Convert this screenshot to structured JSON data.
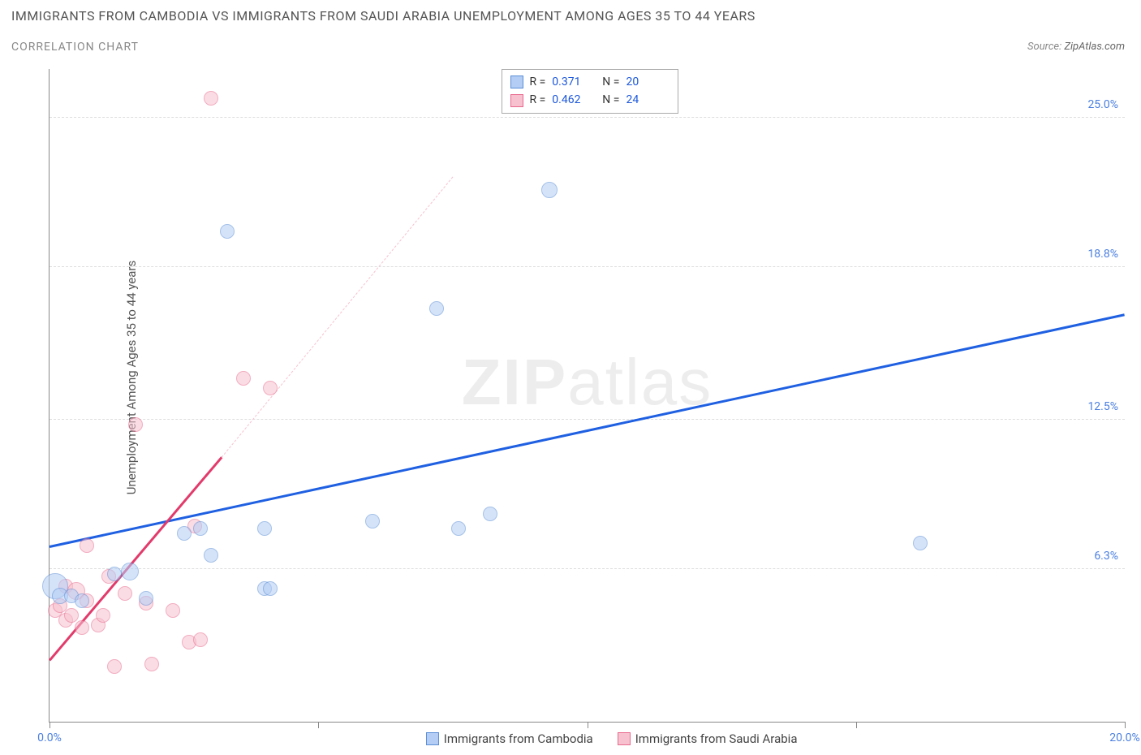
{
  "title": "IMMIGRANTS FROM CAMBODIA VS IMMIGRANTS FROM SAUDI ARABIA UNEMPLOYMENT AMONG AGES 35 TO 44 YEARS",
  "subtitle": "CORRELATION CHART",
  "source_prefix": "Source: ",
  "source_name": "ZipAtlas.com",
  "yaxis_label": "Unemployment Among Ages 35 to 44 years",
  "watermark_a": "ZIP",
  "watermark_b": "atlas",
  "chart": {
    "type": "scatter",
    "xlim": [
      0,
      20
    ],
    "ylim": [
      0,
      27
    ],
    "xticks": [
      0,
      5,
      10,
      15,
      20
    ],
    "xtick_labels": [
      "0.0%",
      "",
      "",
      "",
      "20.0%"
    ],
    "yticks": [
      6.3,
      12.5,
      18.8,
      25.0
    ],
    "ytick_labels": [
      "6.3%",
      "12.5%",
      "18.8%",
      "25.0%"
    ],
    "grid_color": "#dddddd",
    "background": "#ffffff",
    "series": [
      {
        "key": "cambodia",
        "label": "Immigrants from Cambodia",
        "fill": "#b3cdf5",
        "stroke": "#5b8fd6",
        "fill_opacity": 0.55,
        "r_default": 9,
        "R": "0.371",
        "N": "20",
        "trend": {
          "x1": 0,
          "y1": 7.2,
          "x2": 20,
          "y2": 16.8,
          "color": "#1f60e2",
          "dash_after_x": 20
        },
        "points": [
          {
            "x": 0.1,
            "y": 5.6,
            "r": 16
          },
          {
            "x": 0.2,
            "y": 5.2,
            "r": 10
          },
          {
            "x": 0.4,
            "y": 5.2,
            "r": 9
          },
          {
            "x": 0.6,
            "y": 5.0,
            "r": 9
          },
          {
            "x": 1.2,
            "y": 6.1,
            "r": 9
          },
          {
            "x": 1.5,
            "y": 6.2,
            "r": 11
          },
          {
            "x": 1.8,
            "y": 5.1,
            "r": 9
          },
          {
            "x": 2.5,
            "y": 7.8,
            "r": 9
          },
          {
            "x": 2.8,
            "y": 8.0,
            "r": 9
          },
          {
            "x": 3.0,
            "y": 6.9,
            "r": 9
          },
          {
            "x": 4.0,
            "y": 8.0,
            "r": 9
          },
          {
            "x": 4.0,
            "y": 5.5,
            "r": 9
          },
          {
            "x": 4.1,
            "y": 5.5,
            "r": 9
          },
          {
            "x": 6.0,
            "y": 8.3,
            "r": 9
          },
          {
            "x": 7.2,
            "y": 17.1,
            "r": 9
          },
          {
            "x": 7.6,
            "y": 8.0,
            "r": 9
          },
          {
            "x": 8.2,
            "y": 8.6,
            "r": 9
          },
          {
            "x": 9.3,
            "y": 22.0,
            "r": 10
          },
          {
            "x": 16.2,
            "y": 7.4,
            "r": 9
          },
          {
            "x": 3.3,
            "y": 20.3,
            "r": 9
          }
        ]
      },
      {
        "key": "saudi",
        "label": "Immigrants from Saudi Arabia",
        "fill": "#f7c1cf",
        "stroke": "#e96a8d",
        "fill_opacity": 0.55,
        "r_default": 9,
        "R": "0.462",
        "N": "24",
        "trend": {
          "x1": 0,
          "y1": 2.5,
          "x2": 3.2,
          "y2": 10.9,
          "color": "#e23b6b",
          "dash_to_x": 7.5,
          "dash_to_y": 22.5
        },
        "points": [
          {
            "x": 0.1,
            "y": 4.6,
            "r": 9
          },
          {
            "x": 0.2,
            "y": 4.8,
            "r": 9
          },
          {
            "x": 0.3,
            "y": 4.2,
            "r": 9
          },
          {
            "x": 0.3,
            "y": 5.6,
            "r": 9
          },
          {
            "x": 0.5,
            "y": 5.4,
            "r": 11
          },
          {
            "x": 0.6,
            "y": 3.9,
            "r": 9
          },
          {
            "x": 0.7,
            "y": 5.0,
            "r": 9
          },
          {
            "x": 0.7,
            "y": 7.3,
            "r": 9
          },
          {
            "x": 0.9,
            "y": 4.0,
            "r": 9
          },
          {
            "x": 1.0,
            "y": 4.4,
            "r": 9
          },
          {
            "x": 1.1,
            "y": 6.0,
            "r": 9
          },
          {
            "x": 1.2,
            "y": 2.3,
            "r": 9
          },
          {
            "x": 1.4,
            "y": 5.3,
            "r": 9
          },
          {
            "x": 1.6,
            "y": 12.3,
            "r": 9
          },
          {
            "x": 1.8,
            "y": 4.9,
            "r": 9
          },
          {
            "x": 1.9,
            "y": 2.4,
            "r": 9
          },
          {
            "x": 2.3,
            "y": 4.6,
            "r": 9
          },
          {
            "x": 2.6,
            "y": 3.3,
            "r": 9
          },
          {
            "x": 2.7,
            "y": 8.1,
            "r": 9
          },
          {
            "x": 2.8,
            "y": 3.4,
            "r": 9
          },
          {
            "x": 3.0,
            "y": 25.8,
            "r": 9
          },
          {
            "x": 3.6,
            "y": 14.2,
            "r": 9
          },
          {
            "x": 4.1,
            "y": 13.8,
            "r": 9
          },
          {
            "x": 0.4,
            "y": 4.4,
            "r": 9
          }
        ]
      }
    ]
  },
  "stats_box": {
    "R_label": "R =",
    "N_label": "N ="
  }
}
